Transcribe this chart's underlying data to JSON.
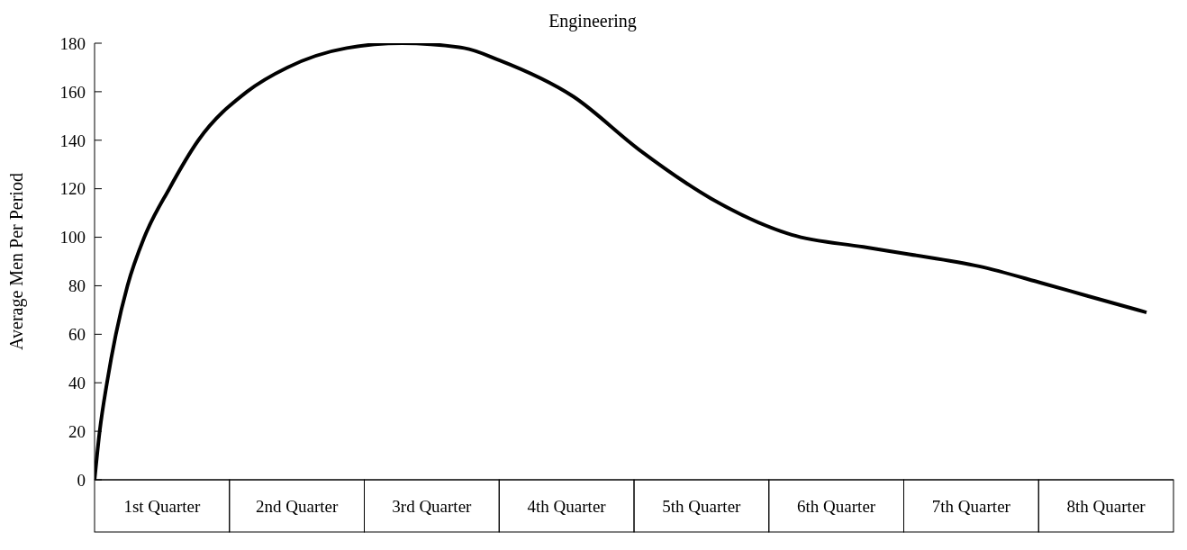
{
  "chart_data": {
    "type": "line",
    "title": "Engineering",
    "ylabel": "Average Men Per Period",
    "x": [
      0,
      0.038,
      0.092,
      0.158,
      0.244,
      0.369,
      0.554,
      0.77,
      1.13,
      1.43,
      1.87,
      2.28,
      2.74,
      3.0,
      3.55,
      4.04,
      4.57,
      5.17,
      5.7,
      6.04,
      6.56,
      7.03,
      7.35,
      7.8
    ],
    "series": [
      {
        "color": "#000000",
        "values": [
          0,
          20,
          40,
          60,
          80,
          100,
          120,
          140,
          160,
          170,
          178,
          180,
          178,
          173,
          158,
          136,
          116,
          101,
          96,
          93,
          88,
          81,
          76,
          69
        ]
      }
    ],
    "xlim": [
      0,
      8
    ],
    "xticks": [
      {
        "value": 0.5,
        "label": "1st Quarter"
      },
      {
        "value": 1.5,
        "label": "2nd Quarter"
      },
      {
        "value": 2.5,
        "label": "3rd Quarter"
      },
      {
        "value": 3.5,
        "label": "4th Quarter"
      },
      {
        "value": 4.5,
        "label": "5th Quarter"
      },
      {
        "value": 5.5,
        "label": "6th Quarter"
      },
      {
        "value": 6.5,
        "label": "7th Quarter"
      },
      {
        "value": 7.5,
        "label": "8th Quarter"
      }
    ],
    "ylim": [
      0,
      180
    ],
    "yticks": [
      0,
      20,
      40,
      60,
      80,
      100,
      120,
      140,
      160,
      180
    ]
  }
}
